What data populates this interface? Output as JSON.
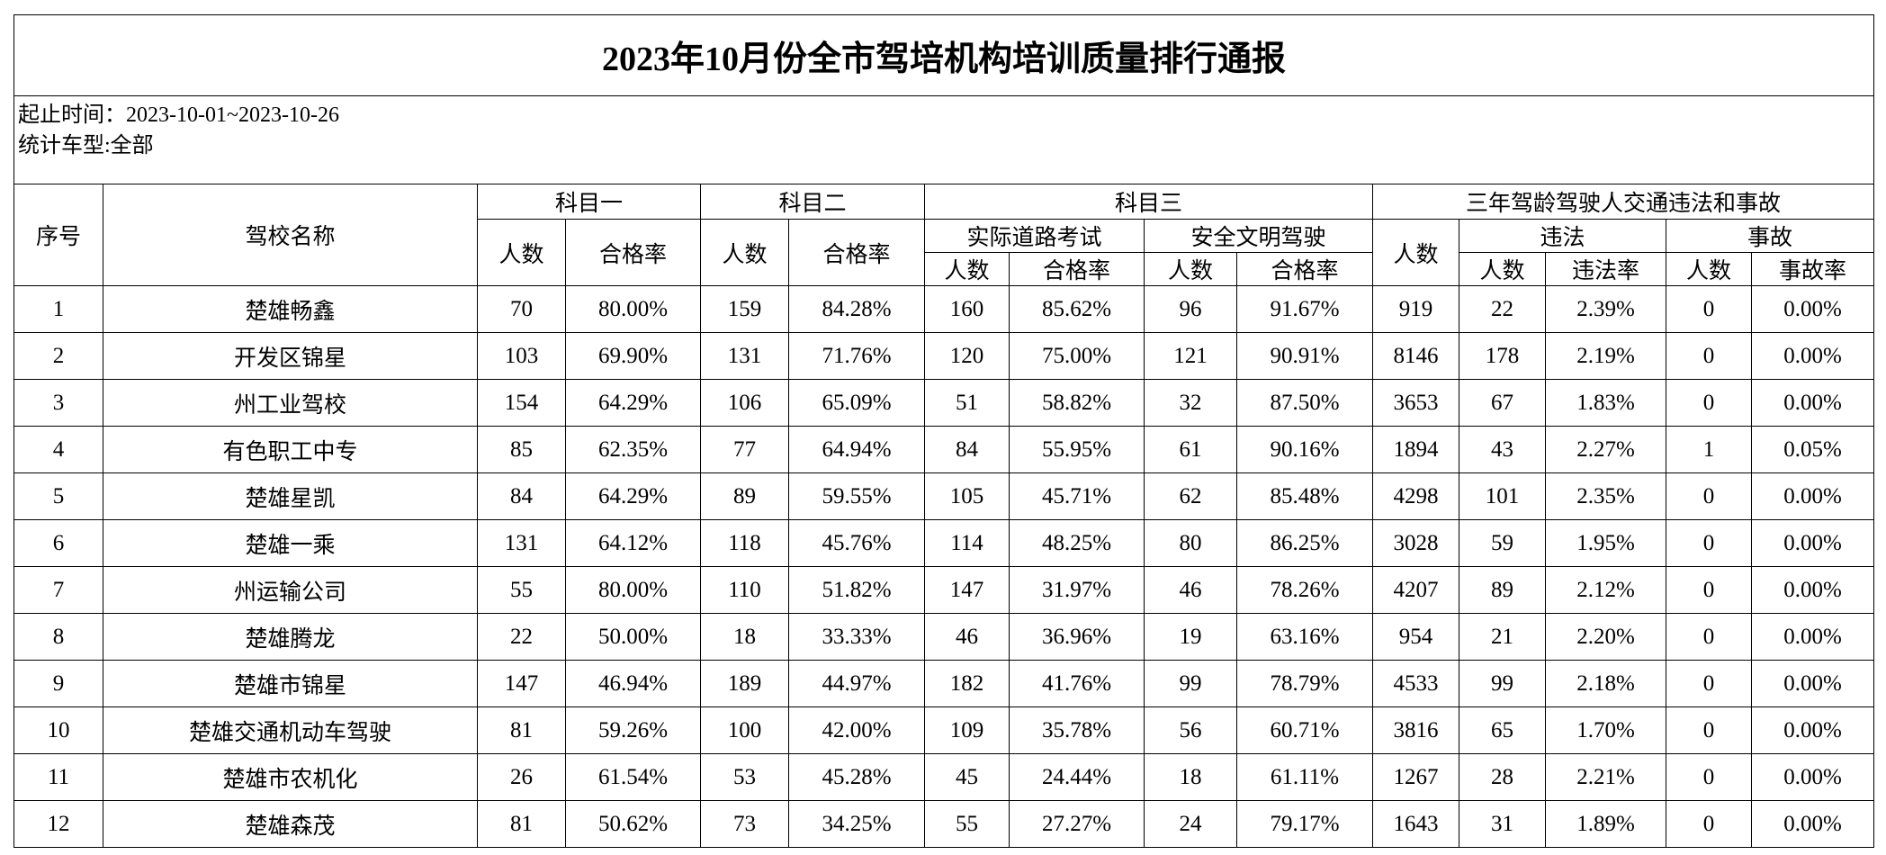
{
  "title": "2023年10月份全市驾培机构培训质量排行通报",
  "info": [
    "起止时间：2023-10-01~2023-10-26",
    "统计车型:全部"
  ],
  "header": {
    "no": "序号",
    "name": "驾校名称",
    "subject1": "科目一",
    "subject2": "科目二",
    "subject3": "科目三",
    "three_year": "三年驾龄驾驶人交通违法和事故",
    "road": "实际道路考试",
    "safe": "安全文明驾驶",
    "violation": "违法",
    "accident": "事故",
    "count": "人数",
    "rate": "合格率",
    "violation_rate": "违法率",
    "accident_rate": "事故率"
  },
  "table": {
    "rows": [
      [
        1,
        "楚雄畅鑫",
        70,
        "80.00%",
        159,
        "84.28%",
        160,
        "85.62%",
        96,
        "91.67%",
        919,
        22,
        "2.39%",
        0,
        "0.00%"
      ],
      [
        2,
        "开发区锦星",
        103,
        "69.90%",
        131,
        "71.76%",
        120,
        "75.00%",
        121,
        "90.91%",
        8146,
        178,
        "2.19%",
        0,
        "0.00%"
      ],
      [
        3,
        "州工业驾校",
        154,
        "64.29%",
        106,
        "65.09%",
        51,
        "58.82%",
        32,
        "87.50%",
        3653,
        67,
        "1.83%",
        0,
        "0.00%"
      ],
      [
        4,
        "有色职工中专",
        85,
        "62.35%",
        77,
        "64.94%",
        84,
        "55.95%",
        61,
        "90.16%",
        1894,
        43,
        "2.27%",
        1,
        "0.05%"
      ],
      [
        5,
        "楚雄星凯",
        84,
        "64.29%",
        89,
        "59.55%",
        105,
        "45.71%",
        62,
        "85.48%",
        4298,
        101,
        "2.35%",
        0,
        "0.00%"
      ],
      [
        6,
        "楚雄一乘",
        131,
        "64.12%",
        118,
        "45.76%",
        114,
        "48.25%",
        80,
        "86.25%",
        3028,
        59,
        "1.95%",
        0,
        "0.00%"
      ],
      [
        7,
        "州运输公司",
        55,
        "80.00%",
        110,
        "51.82%",
        147,
        "31.97%",
        46,
        "78.26%",
        4207,
        89,
        "2.12%",
        0,
        "0.00%"
      ],
      [
        8,
        "楚雄腾龙",
        22,
        "50.00%",
        18,
        "33.33%",
        46,
        "36.96%",
        19,
        "63.16%",
        954,
        21,
        "2.20%",
        0,
        "0.00%"
      ],
      [
        9,
        "楚雄市锦星",
        147,
        "46.94%",
        189,
        "44.97%",
        182,
        "41.76%",
        99,
        "78.79%",
        4533,
        99,
        "2.18%",
        0,
        "0.00%"
      ],
      [
        10,
        "楚雄交通机动车驾驶",
        81,
        "59.26%",
        100,
        "42.00%",
        109,
        "35.78%",
        56,
        "60.71%",
        3816,
        65,
        "1.70%",
        0,
        "0.00%"
      ],
      [
        11,
        "楚雄市农机化",
        26,
        "61.54%",
        53,
        "45.28%",
        45,
        "24.44%",
        18,
        "61.11%",
        1267,
        28,
        "2.21%",
        0,
        "0.00%"
      ],
      [
        12,
        "楚雄森茂",
        81,
        "50.62%",
        73,
        "34.25%",
        55,
        "27.27%",
        24,
        "79.17%",
        1643,
        31,
        "1.89%",
        0,
        "0.00%"
      ]
    ]
  }
}
